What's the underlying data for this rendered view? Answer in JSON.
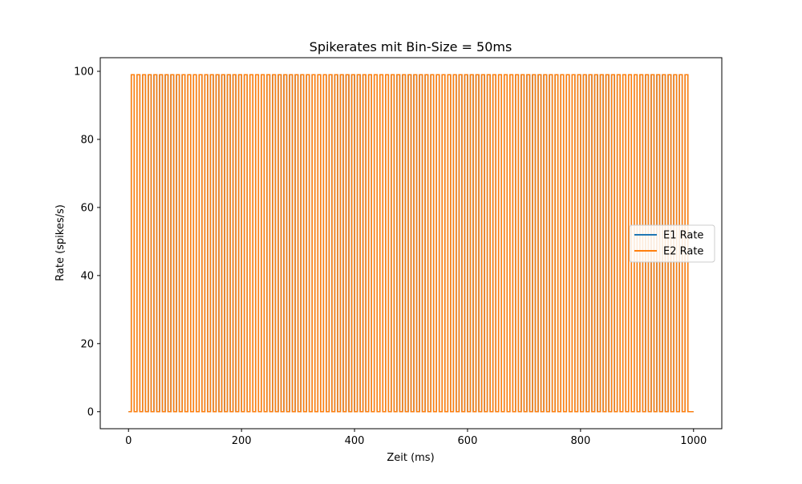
{
  "chart_data": {
    "type": "line",
    "title": "Spikerates mit Bin-Size = 50ms",
    "xlabel": "Zeit (ms)",
    "ylabel": "Rate (spikes/s)",
    "xlim": [
      -50,
      1050
    ],
    "ylim": [
      -5,
      104
    ],
    "x_ticks": [
      0,
      200,
      400,
      600,
      800,
      1000
    ],
    "y_ticks": [
      0,
      20,
      40,
      60,
      80,
      100
    ],
    "x_tick_labels": [
      "0",
      "200",
      "400",
      "600",
      "800",
      "1000"
    ],
    "y_tick_labels": [
      "0",
      "20",
      "40",
      "60",
      "80",
      "100"
    ],
    "grid": false,
    "legend_position": "center-right",
    "step": true,
    "series": [
      {
        "name": "E1 Rate",
        "color": "#1f77b4",
        "pulse_starts": [
          5,
          15,
          25,
          35,
          45,
          55,
          65,
          75,
          85,
          95,
          105,
          115,
          125,
          135,
          145,
          155,
          165,
          175,
          185,
          195,
          205,
          215,
          225,
          235,
          245,
          255,
          265,
          275,
          285,
          295,
          305,
          315,
          325,
          335,
          345,
          355,
          365,
          375,
          385,
          395,
          405,
          415,
          425,
          435,
          445,
          455,
          465,
          475,
          485,
          495,
          505,
          515,
          525,
          535,
          545,
          555,
          565,
          575,
          585,
          595,
          605,
          615,
          625,
          635,
          645,
          655,
          665,
          675,
          685,
          695,
          705,
          715,
          725,
          735,
          745,
          755,
          765,
          775,
          785,
          795,
          805,
          815,
          825,
          835,
          845,
          855,
          865,
          875,
          885,
          895,
          905,
          915,
          925,
          935,
          945,
          955,
          965,
          975,
          985
        ],
        "pulse_width_ms": 5,
        "high_value": 99,
        "low_value": 0,
        "x_range": [
          0,
          1000
        ]
      },
      {
        "name": "E2 Rate",
        "color": "#ff7f0e",
        "pulse_starts": [
          5,
          15,
          25,
          35,
          45,
          55,
          65,
          75,
          85,
          95,
          105,
          115,
          125,
          135,
          145,
          155,
          165,
          175,
          185,
          195,
          205,
          215,
          225,
          235,
          245,
          255,
          265,
          275,
          285,
          295,
          305,
          315,
          325,
          335,
          345,
          355,
          365,
          375,
          385,
          395,
          405,
          415,
          425,
          435,
          445,
          455,
          465,
          475,
          485,
          495,
          505,
          515,
          525,
          535,
          545,
          555,
          565,
          575,
          585,
          595,
          605,
          615,
          625,
          635,
          645,
          655,
          665,
          675,
          685,
          695,
          705,
          715,
          725,
          735,
          745,
          755,
          765,
          775,
          785,
          795,
          805,
          815,
          825,
          835,
          845,
          855,
          865,
          875,
          885,
          895,
          905,
          915,
          925,
          935,
          945,
          955,
          965,
          975,
          985
        ],
        "pulse_width_ms": 5,
        "high_value": 99,
        "low_value": 0,
        "x_range": [
          0,
          1000
        ]
      }
    ]
  }
}
